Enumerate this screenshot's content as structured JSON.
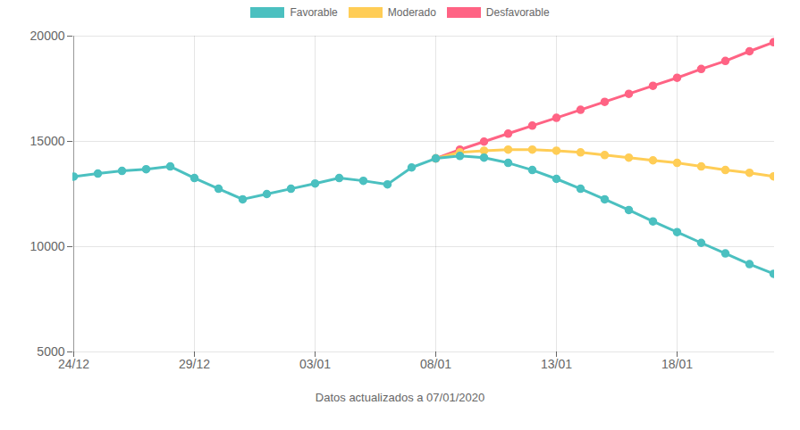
{
  "chart_data": {
    "type": "line",
    "categories": [
      "24/12",
      null,
      null,
      null,
      null,
      "29/12",
      null,
      null,
      null,
      null,
      "03/01",
      null,
      null,
      null,
      null,
      "08/01",
      null,
      null,
      null,
      null,
      "13/01",
      null,
      null,
      null,
      null,
      "18/01",
      null,
      null,
      null,
      null
    ],
    "series": [
      {
        "name": "Favorable",
        "color": "#4bc0c0",
        "values": [
          13330,
          13470,
          13600,
          13680,
          13810,
          13260,
          12750,
          12250,
          12500,
          12750,
          13000,
          13260,
          13130,
          12960,
          13760,
          14190,
          14310,
          14230,
          13980,
          13640,
          13220,
          12750,
          12250,
          11740,
          11200,
          10690,
          10180,
          9680,
          9170,
          8710
        ]
      },
      {
        "name": "Moderado",
        "color": "#ffcd56",
        "values": [
          null,
          null,
          null,
          null,
          null,
          null,
          null,
          null,
          null,
          null,
          null,
          null,
          null,
          null,
          null,
          14190,
          14480,
          14560,
          14610,
          14610,
          14560,
          14480,
          14350,
          14230,
          14100,
          13980,
          13810,
          13640,
          13510,
          13340
        ]
      },
      {
        "name": "Desfavorable",
        "color": "#ff6384",
        "values": [
          null,
          null,
          null,
          null,
          null,
          null,
          null,
          null,
          null,
          null,
          null,
          null,
          null,
          null,
          null,
          14190,
          14610,
          14990,
          15370,
          15750,
          16120,
          16500,
          16880,
          17260,
          17640,
          18020,
          18440,
          18820,
          19280,
          19710
        ]
      }
    ],
    "x_label": "Datos actualizados a 07/01/2020",
    "ylim": [
      5000,
      20000
    ],
    "yticks": [
      5000,
      10000,
      15000,
      20000
    ],
    "grid": true,
    "legend": "top",
    "marker": "circle"
  }
}
